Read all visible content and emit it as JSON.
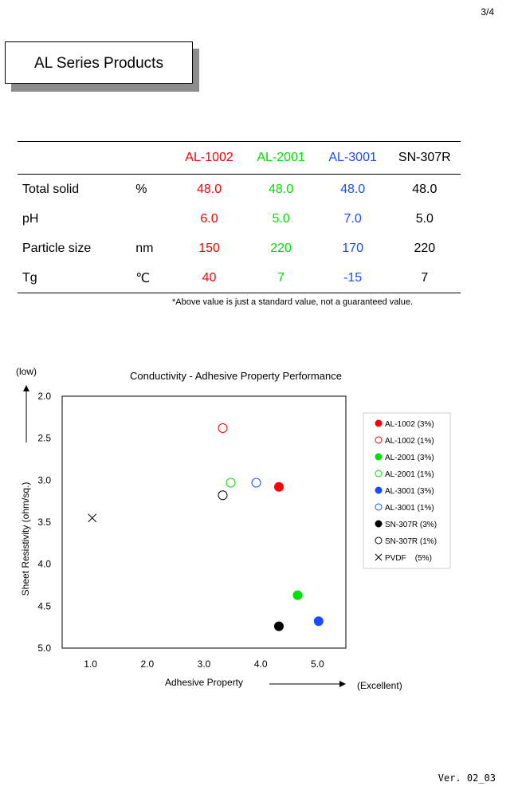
{
  "page_number": "3/4",
  "title": "AL Series Products",
  "table": {
    "headers": [
      "",
      "",
      "AL-1002",
      "AL-2001",
      "AL-3001",
      "SN-307R"
    ],
    "rows": [
      {
        "label": "Total solid",
        "unit": "%",
        "values": [
          "48.0",
          "48.0",
          "48.0",
          "48.0"
        ]
      },
      {
        "label": "pH",
        "unit": "",
        "values": [
          "6.0",
          "5.0",
          "7.0",
          "5.0"
        ]
      },
      {
        "label": "Particle size",
        "unit": "nm",
        "values": [
          "150",
          "220",
          "170",
          "220"
        ]
      },
      {
        "label": "Tg",
        "unit": "℃",
        "values": [
          "40",
          "7",
          "-15",
          "7"
        ]
      }
    ]
  },
  "colors": {
    "al1002": "#ff0000",
    "al2001": "#00e000",
    "al3001": "#1a4cff",
    "sn307r": "#000000"
  },
  "footnote": "*Above value is just a standard value, not a guaranteed value.",
  "chart_data": {
    "type": "scatter",
    "title": "Conductivity - Adhesive Property Performance",
    "xlabel": "Adhesive Property",
    "ylabel": "Sheet Resistivity (ohm/sq.)",
    "x_annotation": "(Excellent)",
    "y_annotation": "(low)",
    "xlim": [
      0.5,
      5.5
    ],
    "ylim": [
      2.0,
      5.0
    ],
    "y_inverted": true,
    "x_ticks": [
      "1.0",
      "2.0",
      "3.0",
      "4.0",
      "5.0"
    ],
    "y_ticks": [
      "2.0",
      "2.5",
      "3.0",
      "3.5",
      "4.0",
      "4.5",
      "5.0"
    ],
    "grid": false,
    "legend_position": "right",
    "series": [
      {
        "name": "AL-1002 (3%)",
        "marker": "filled-circle",
        "color": "#ff0000",
        "points": [
          [
            4.32,
            3.08
          ]
        ]
      },
      {
        "name": "AL-1002 (1%)",
        "marker": "open-circle",
        "color": "#ff0000",
        "points": [
          [
            3.33,
            2.38
          ]
        ]
      },
      {
        "name": "AL-2001 (3%)",
        "marker": "filled-circle",
        "color": "#00e000",
        "points": [
          [
            4.65,
            4.37
          ]
        ]
      },
      {
        "name": "AL-2001 (1%)",
        "marker": "open-circle",
        "color": "#00e000",
        "points": [
          [
            3.47,
            3.03
          ]
        ]
      },
      {
        "name": "AL-3001 (3%)",
        "marker": "filled-circle",
        "color": "#1a4cff",
        "points": [
          [
            5.02,
            4.68
          ]
        ]
      },
      {
        "name": "AL-3001 (1%)",
        "marker": "open-circle",
        "color": "#1a4cff",
        "points": [
          [
            3.92,
            3.03
          ]
        ]
      },
      {
        "name": "SN-307R (3%)",
        "marker": "filled-circle",
        "color": "#000000",
        "points": [
          [
            4.32,
            4.74
          ]
        ]
      },
      {
        "name": "SN-307R (1%)",
        "marker": "open-circle",
        "color": "#000000",
        "points": [
          [
            3.33,
            3.18
          ]
        ]
      },
      {
        "name": "PVDF    (5%)",
        "marker": "cross",
        "color": "#000000",
        "points": [
          [
            1.03,
            3.45
          ]
        ]
      }
    ]
  },
  "version": "Ver. 02_03"
}
